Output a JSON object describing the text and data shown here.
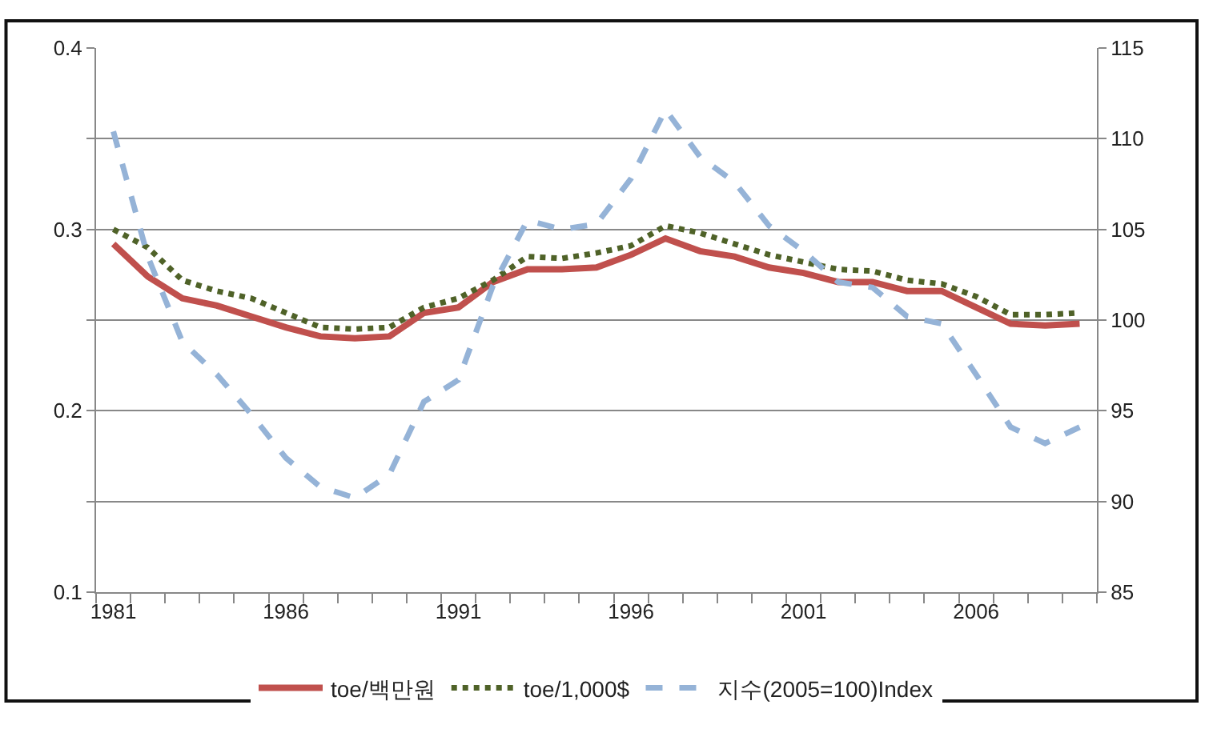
{
  "chart_data": {
    "type": "line",
    "categories": [
      "1981",
      null,
      null,
      null,
      null,
      "1986",
      null,
      null,
      null,
      null,
      "1991",
      null,
      null,
      null,
      null,
      "1996",
      null,
      null,
      null,
      null,
      "2001",
      null,
      null,
      null,
      null,
      "2006",
      null,
      null,
      null
    ],
    "series": [
      {
        "name": "toe/백만원",
        "color": "#c0504d",
        "line_style": "solid",
        "values": [
          0.292,
          0.274,
          0.262,
          0.258,
          0.252,
          0.246,
          0.241,
          0.24,
          0.241,
          0.254,
          0.257,
          0.271,
          0.278,
          0.278,
          0.279,
          0.286,
          0.295,
          0.288,
          0.285,
          0.279,
          0.276,
          0.271,
          0.271,
          0.266,
          0.266,
          0.257,
          0.248,
          0.247,
          0.248
        ]
      },
      {
        "name": "toe/1,000$",
        "color": "#4f6228",
        "line_style": "dotted",
        "values": [
          0.3,
          0.29,
          0.272,
          0.266,
          0.262,
          0.254,
          0.246,
          0.245,
          0.246,
          0.257,
          0.262,
          0.272,
          0.285,
          0.284,
          0.287,
          0.291,
          0.302,
          0.298,
          0.292,
          0.286,
          0.282,
          0.278,
          0.277,
          0.272,
          0.27,
          0.263,
          0.253,
          0.253,
          0.254
        ]
      },
      {
        "name": "지수(2005=100)Index",
        "color": "#95b3d7",
        "line_style": "dashed",
        "axis": "y2",
        "values": [
          110.4,
          103.5,
          98.8,
          97,
          94.8,
          92.4,
          90.8,
          90.2,
          91.5,
          95.5,
          96.7,
          101.9,
          105.5,
          105,
          105.3,
          107.8,
          111.6,
          109,
          107.6,
          105.2,
          103.8,
          102.1,
          101.8,
          100.2,
          99.8,
          97,
          94.1,
          93.2,
          94.1
        ]
      }
    ],
    "ylim": [
      0.1,
      0.4
    ],
    "yticks": [
      0.1,
      {
        "value": 0.15,
        "label": null
      },
      0.2,
      {
        "value": 0.25,
        "label": null
      },
      0.3,
      {
        "value": 0.35,
        "label": null
      },
      0.4
    ],
    "y2lim": [
      85,
      115
    ],
    "y2ticks": [
      85,
      90,
      95,
      100,
      105,
      110,
      115
    ],
    "grid": "y",
    "legend": "bottom",
    "marker": "none"
  }
}
